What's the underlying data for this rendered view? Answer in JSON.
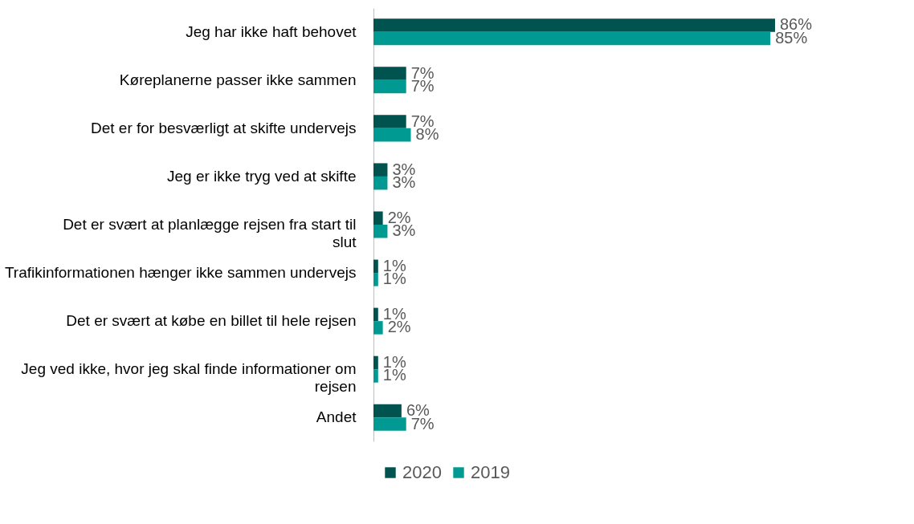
{
  "chart_data": {
    "type": "bar",
    "orientation": "horizontal",
    "categories": [
      "Jeg har ikke haft behovet",
      "Køreplanerne passer ikke sammen",
      "Det er for besværligt at skifte undervejs",
      "Jeg er ikke tryg ved at skifte",
      "Det er svært at planlægge rejsen fra start til slut",
      "Trafikinformationen hænger ikke sammen undervejs",
      "Det er svært at købe en billet til hele rejsen",
      "Jeg ved ikke, hvor jeg skal finde informationer om rejsen",
      "Andet"
    ],
    "series": [
      {
        "name": "2020",
        "color": "#00534f",
        "values": [
          86,
          7,
          7,
          3,
          2,
          1,
          1,
          1,
          6
        ],
        "value_labels": [
          "86%",
          "7%",
          "7%",
          "3%",
          "2%",
          "1%",
          "1%",
          "1%",
          "6%"
        ]
      },
      {
        "name": "2019",
        "color": "#009a93",
        "values": [
          85,
          7,
          8,
          3,
          3,
          1,
          2,
          1,
          7
        ],
        "value_labels": [
          "85%",
          "7%",
          "8%",
          "3%",
          "3%",
          "1%",
          "2%",
          "1%",
          "7%"
        ]
      }
    ],
    "legend": "bottom",
    "grid": false
  }
}
